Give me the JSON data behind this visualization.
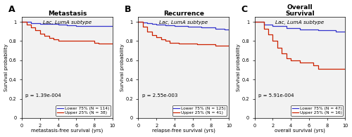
{
  "panels": [
    {
      "label": "A",
      "title": "Metastasis",
      "subtitle": "Lac, LumA subtype",
      "xlabel": "metastasis-free survival (yrs)",
      "ylabel": "Survival probability",
      "pvalue": "p = 1.39e-004",
      "legend_blue": "Lower 75% (N = 114)",
      "legend_red": "Upper 25% (N = 38)",
      "blue_x": [
        0,
        1.0,
        1.0,
        2.0,
        2.0,
        3.0,
        3.0,
        4.0,
        4.0,
        5.0,
        5.0,
        6.0,
        6.0,
        7.5,
        7.5,
        8.5,
        8.5,
        10.0
      ],
      "blue_y": [
        1.0,
        1.0,
        0.988,
        0.988,
        0.982,
        0.982,
        0.976,
        0.976,
        0.97,
        0.97,
        0.965,
        0.965,
        0.96,
        0.96,
        0.957,
        0.957,
        0.954,
        0.954
      ],
      "red_x": [
        0,
        0.5,
        0.5,
        1.0,
        1.0,
        1.5,
        1.5,
        2.0,
        2.0,
        2.5,
        2.5,
        3.0,
        3.0,
        3.5,
        3.5,
        4.0,
        4.0,
        8.0,
        8.0,
        8.5,
        8.5,
        10.0
      ],
      "red_y": [
        1.0,
        1.0,
        0.97,
        0.97,
        0.94,
        0.94,
        0.91,
        0.91,
        0.88,
        0.88,
        0.855,
        0.855,
        0.835,
        0.835,
        0.815,
        0.815,
        0.8,
        0.8,
        0.783,
        0.783,
        0.775,
        0.775
      ],
      "ylim": [
        0,
        1.05
      ],
      "yticks": [
        0,
        0.2,
        0.4,
        0.6,
        0.8,
        1.0
      ]
    },
    {
      "label": "B",
      "title": "Recurrence",
      "subtitle": "Lac, LumA subtype",
      "xlabel": "relapse-free survival (yrs)",
      "ylabel": "Survival probability",
      "pvalue": "p = 2.55e-003",
      "legend_blue": "Lower 75% (N = 125)",
      "legend_red": "Upper 25% (N = 41)",
      "blue_x": [
        0,
        0.5,
        0.5,
        1.0,
        1.0,
        1.5,
        1.5,
        2.0,
        2.0,
        3.0,
        3.0,
        4.0,
        4.0,
        5.5,
        5.5,
        7.0,
        7.0,
        8.5,
        8.5,
        9.5,
        9.5,
        10.0
      ],
      "blue_y": [
        1.0,
        1.0,
        0.993,
        0.993,
        0.987,
        0.987,
        0.98,
        0.98,
        0.972,
        0.972,
        0.964,
        0.964,
        0.957,
        0.957,
        0.95,
        0.95,
        0.94,
        0.94,
        0.93,
        0.93,
        0.922,
        0.922
      ],
      "red_x": [
        0,
        0.5,
        0.5,
        1.0,
        1.0,
        1.5,
        1.5,
        2.0,
        2.0,
        2.5,
        2.5,
        3.0,
        3.0,
        3.5,
        3.5,
        4.5,
        4.5,
        6.5,
        6.5,
        8.5,
        8.5,
        10.0
      ],
      "red_y": [
        1.0,
        1.0,
        0.95,
        0.95,
        0.9,
        0.9,
        0.865,
        0.865,
        0.84,
        0.84,
        0.815,
        0.815,
        0.8,
        0.8,
        0.785,
        0.785,
        0.775,
        0.775,
        0.765,
        0.765,
        0.752,
        0.752
      ],
      "ylim": [
        0,
        1.05
      ],
      "yticks": [
        0,
        0.2,
        0.4,
        0.6,
        0.8,
        1.0
      ]
    },
    {
      "label": "C",
      "title": "Overall\nSurvival",
      "subtitle": "Lac, LumA subtype",
      "xlabel": "overall survival (yrs)",
      "ylabel": "Survival probability",
      "pvalue": "p = 5.91e-004",
      "legend_blue": "Lower 75% (N = 47)",
      "legend_red": "Upper 25% (N = 16)",
      "blue_x": [
        0,
        1.0,
        1.0,
        2.0,
        2.0,
        3.5,
        3.5,
        5.0,
        5.0,
        7.0,
        7.0,
        9.0,
        9.0,
        10.0
      ],
      "blue_y": [
        1.0,
        1.0,
        0.975,
        0.975,
        0.955,
        0.955,
        0.935,
        0.935,
        0.92,
        0.92,
        0.91,
        0.91,
        0.895,
        0.895
      ],
      "red_x": [
        0,
        1.0,
        1.0,
        1.5,
        1.5,
        2.0,
        2.0,
        2.5,
        2.5,
        3.0,
        3.0,
        3.5,
        3.5,
        4.0,
        4.0,
        5.0,
        5.0,
        6.5,
        6.5,
        7.0,
        7.0,
        10.0
      ],
      "red_y": [
        1.0,
        1.0,
        0.93,
        0.93,
        0.87,
        0.87,
        0.8,
        0.8,
        0.73,
        0.73,
        0.67,
        0.67,
        0.62,
        0.62,
        0.6,
        0.6,
        0.575,
        0.575,
        0.545,
        0.545,
        0.51,
        0.51
      ],
      "ylim": [
        0,
        1.05
      ],
      "yticks": [
        0,
        0.2,
        0.4,
        0.6,
        0.8,
        1.0
      ]
    }
  ],
  "blue_color": "#3333CC",
  "red_color": "#CC2200",
  "bg_color": "#F2F2F2",
  "font_size_title": 6.5,
  "font_size_label": 5.0,
  "font_size_tick": 4.8,
  "font_size_legend": 4.2,
  "font_size_pval": 5.0,
  "font_size_subtitle": 5.2,
  "font_size_panel_label": 9
}
